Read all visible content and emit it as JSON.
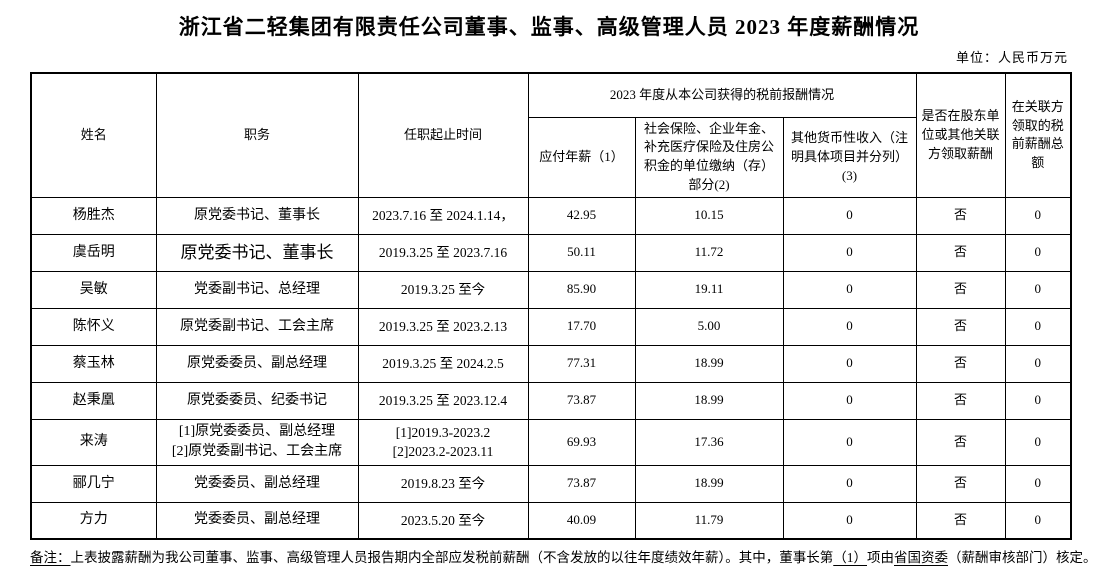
{
  "title": "浙江省二轻集团有限责任公司董事、监事、高级管理人员 2023 年度薪酬情况",
  "unit_label": "单位：人民币万元",
  "table": {
    "headers": {
      "name": "姓名",
      "position": "职务",
      "term": "任职起止时间",
      "compensation_group": "2023 年度从本公司获得的税前报酬情况",
      "salary": "应付年薪（1）",
      "insurance": "社会保险、企业年金、补充医疗保险及住房公积金的单位缴纳（存）部分(2)",
      "other_income": "其他货币性收入（注明具体项目并分列）(3)",
      "related_party_pay": "是否在股东单位或其他关联方领取薪酬",
      "related_party_total": "在关联方领取的税前薪酬总额"
    },
    "rows": [
      {
        "name": "杨胜杰",
        "position": "原党委书记、董事长",
        "term": "2023.7.16 至 2024.1.14，",
        "salary": "42.95",
        "insurance": "10.15",
        "other": "0",
        "related": "否",
        "related_total": "0"
      },
      {
        "name": "虞岳明",
        "position": "原党委书记、董事长",
        "term": "2019.3.25 至 2023.7.16",
        "salary": "50.11",
        "insurance": "11.72",
        "other": "0",
        "related": "否",
        "related_total": "0"
      },
      {
        "name": "吴敏",
        "position": "党委副书记、总经理",
        "term": "2019.3.25 至今",
        "salary": "85.90",
        "insurance": "19.11",
        "other": "0",
        "related": "否",
        "related_total": "0"
      },
      {
        "name": "陈怀义",
        "position": "原党委副书记、工会主席",
        "term": "2019.3.25 至 2023.2.13",
        "salary": "17.70",
        "insurance": "5.00",
        "other": "0",
        "related": "否",
        "related_total": "0"
      },
      {
        "name": "蔡玉林",
        "position": "原党委委员、副总经理",
        "term": "2019.3.25 至 2024.2.5",
        "salary": "77.31",
        "insurance": "18.99",
        "other": "0",
        "related": "否",
        "related_total": "0"
      },
      {
        "name": "赵秉凰",
        "position": "原党委委员、纪委书记",
        "term": "2019.3.25 至 2023.12.4",
        "salary": "73.87",
        "insurance": "18.99",
        "other": "0",
        "related": "否",
        "related_total": "0"
      },
      {
        "name": "来涛",
        "position": "[1]原党委委员、副总经理\n[2]原党委副书记、工会主席",
        "term": "[1]2019.3-2023.2\n[2]2023.2-2023.11",
        "salary": "69.93",
        "insurance": "17.36",
        "other": "0",
        "related": "否",
        "related_total": "0"
      },
      {
        "name": "郦几宁",
        "position": "党委委员、副总经理",
        "term": "2019.8.23 至今",
        "salary": "73.87",
        "insurance": "18.99",
        "other": "0",
        "related": "否",
        "related_total": "0"
      },
      {
        "name": "方力",
        "position": "党委委员、副总经理",
        "term": "2023.5.20 至今",
        "salary": "40.09",
        "insurance": "11.79",
        "other": "0",
        "related": "否",
        "related_total": "0"
      }
    ]
  },
  "footnote": {
    "segments": [
      {
        "text": "备注：",
        "underline": true
      },
      {
        "text": "上表披露薪酬为我公司董事、监事、高级管理人员报告期内全部应发税前薪酬（不含发放的以往年度绩效年薪）。其中，董事长第",
        "underline": false
      },
      {
        "text": "（1）",
        "underline": true
      },
      {
        "text": "项由",
        "underline": false
      },
      {
        "text": "省国资委",
        "underline": true
      },
      {
        "text": "（薪酬审核部门）核定。",
        "underline": false
      }
    ]
  }
}
